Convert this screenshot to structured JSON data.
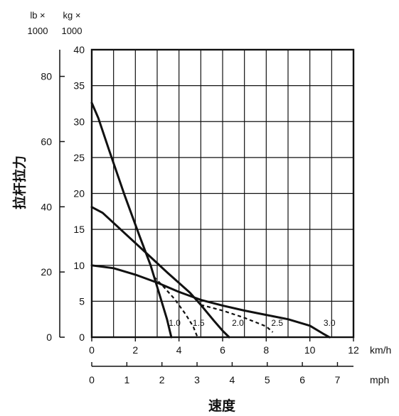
{
  "chart_data": {
    "type": "line",
    "ylabel": "拉杆拉力",
    "xlabel": "速度",
    "left_axis": {
      "header": [
        "lb ×",
        "1000"
      ],
      "ticks": [
        "0",
        "20",
        "40",
        "60",
        "80"
      ],
      "unit": "lb × 1000"
    },
    "right_axis": {
      "header": [
        "kg ×",
        "1000"
      ],
      "ticks": [
        "0",
        "5",
        "10",
        "15",
        "20",
        "25",
        "30",
        "35",
        "40"
      ],
      "ylim": [
        0,
        40
      ],
      "unit": "kg × 1000"
    },
    "x_axis_kmh": {
      "ticks": [
        "0",
        "2",
        "4",
        "6",
        "8",
        "10",
        "12"
      ],
      "xlim": [
        0,
        12
      ],
      "unit": "km/h"
    },
    "x_axis_mph": {
      "ticks": [
        "0",
        "1",
        "2",
        "3",
        "4",
        "5",
        "6",
        "7"
      ],
      "unit": "mph"
    },
    "grid": true,
    "series": [
      {
        "name": "1.0",
        "style": "solid",
        "points": [
          [
            0,
            32.6
          ],
          [
            0.3,
            30.5
          ],
          [
            0.8,
            26.0
          ],
          [
            1.5,
            19.8
          ],
          [
            2.2,
            14.0
          ],
          [
            2.7,
            10.0
          ],
          [
            3.1,
            6.0
          ],
          [
            3.45,
            2.5
          ],
          [
            3.65,
            0
          ]
        ]
      },
      {
        "name": "1.5",
        "style": "dashed",
        "points": [
          [
            2.85,
            8.4
          ],
          [
            3.3,
            7.0
          ],
          [
            3.8,
            5.3
          ],
          [
            4.3,
            3.2
          ],
          [
            4.65,
            1.5
          ],
          [
            4.85,
            0
          ]
        ]
      },
      {
        "name": "2.0",
        "style": "solid",
        "points": [
          [
            0,
            18.1
          ],
          [
            0.5,
            17.3
          ],
          [
            1.5,
            14.5
          ],
          [
            2.5,
            11.7
          ],
          [
            3.5,
            8.9
          ],
          [
            4.5,
            6.2
          ],
          [
            5.0,
            4.5
          ],
          [
            5.6,
            2.3
          ],
          [
            6.0,
            0.9
          ],
          [
            6.3,
            0
          ]
        ]
      },
      {
        "name": "2.5",
        "style": "dashed",
        "points": [
          [
            5.0,
            4.5
          ],
          [
            6.0,
            3.7
          ],
          [
            7.0,
            2.7
          ],
          [
            8.0,
            1.5
          ],
          [
            8.3,
            0.7
          ]
        ]
      },
      {
        "name": "3.0",
        "style": "solid",
        "points": [
          [
            0,
            10.0
          ],
          [
            1.0,
            9.6
          ],
          [
            2.0,
            8.7
          ],
          [
            3.0,
            7.6
          ],
          [
            4.0,
            6.3
          ],
          [
            5.0,
            5.2
          ],
          [
            6.0,
            4.4
          ],
          [
            7.0,
            3.7
          ],
          [
            8.0,
            3.1
          ],
          [
            9.0,
            2.5
          ],
          [
            10.0,
            1.6
          ],
          [
            10.6,
            0.5
          ],
          [
            10.9,
            0
          ]
        ]
      }
    ],
    "curve_labels": [
      {
        "text": "1.0",
        "x": 3.8,
        "y": 1.6
      },
      {
        "text": "1.5",
        "x": 4.9,
        "y": 1.6
      },
      {
        "text": "2.0",
        "x": 6.7,
        "y": 1.6
      },
      {
        "text": "2.5",
        "x": 8.5,
        "y": 1.6
      },
      {
        "text": "3.0",
        "x": 10.9,
        "y": 1.6
      }
    ]
  }
}
